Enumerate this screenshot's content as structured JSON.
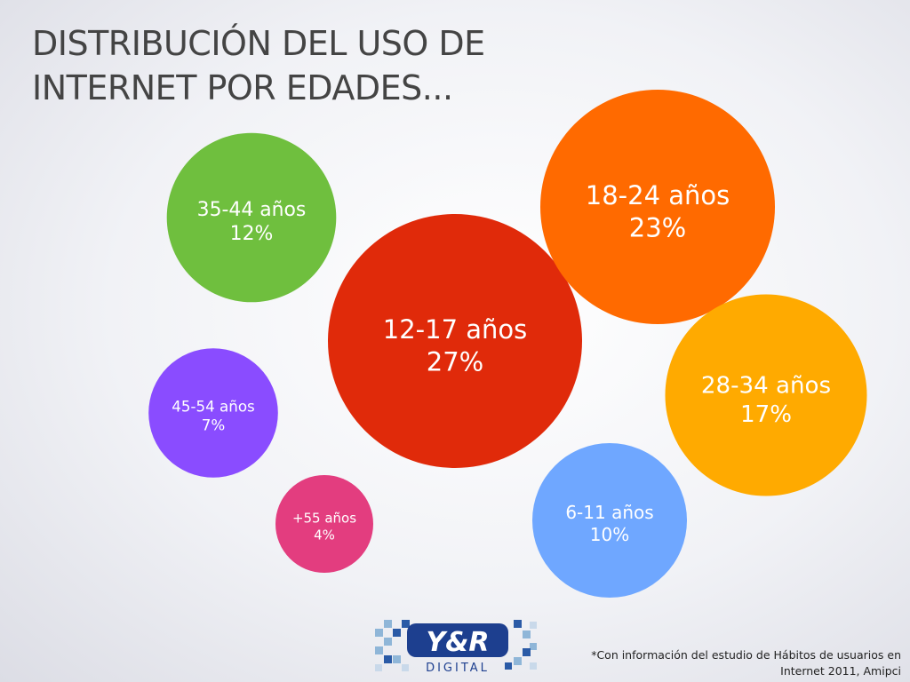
{
  "title": {
    "line1": "DISTRIBUCIÓN DEL USO DE",
    "line2": "INTERNET POR EDADES..."
  },
  "chart_data": {
    "type": "bubble",
    "categories": [
      "12-17 años",
      "18-24 años",
      "28-34 años",
      "35-44 años",
      "6-11 años",
      "45-54 años",
      "+55 años"
    ],
    "values": [
      27,
      23,
      17,
      12,
      10,
      7,
      4
    ],
    "labels": [
      "27%",
      "23%",
      "17%",
      "12%",
      "10%",
      "7%",
      "4%"
    ],
    "colors": [
      "#e02a0a",
      "#ff6a00",
      "#ffaa00",
      "#6fbf3e",
      "#6fa7ff",
      "#8a4cff",
      "#e33d7f"
    ]
  },
  "footnote": {
    "line1": "*Con información del estudio de Hábitos de usuarios en",
    "line2": "Internet 2011, Amipci"
  },
  "logo": {
    "brand": "Y&R",
    "sub": "DIGITAL"
  }
}
